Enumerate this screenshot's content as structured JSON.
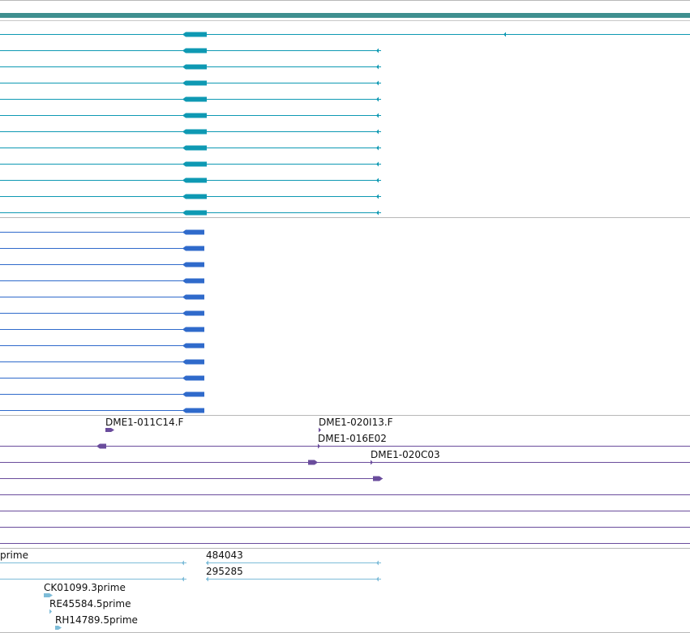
{
  "colors": {
    "top_bar": "#3f8f8f",
    "gene_track": "#0e99b3",
    "cds_track": "#2f6acb",
    "clone_track": "#6a4c9c",
    "est_track": "#7dbcd8",
    "divider": "#b8b8b8"
  },
  "labels": {
    "clone_a": "DME1-011C14.F",
    "clone_b": "DME1-020I13.F",
    "clone_c": "DME1-016E02",
    "clone_d": "DME1-020C03",
    "est_prime": "prime",
    "est_484043": "484043",
    "est_295285": "295285",
    "est_ck": "CK01099.3prime",
    "est_re": "RE45584.5prime",
    "est_rh": "RH14789.5prime"
  }
}
